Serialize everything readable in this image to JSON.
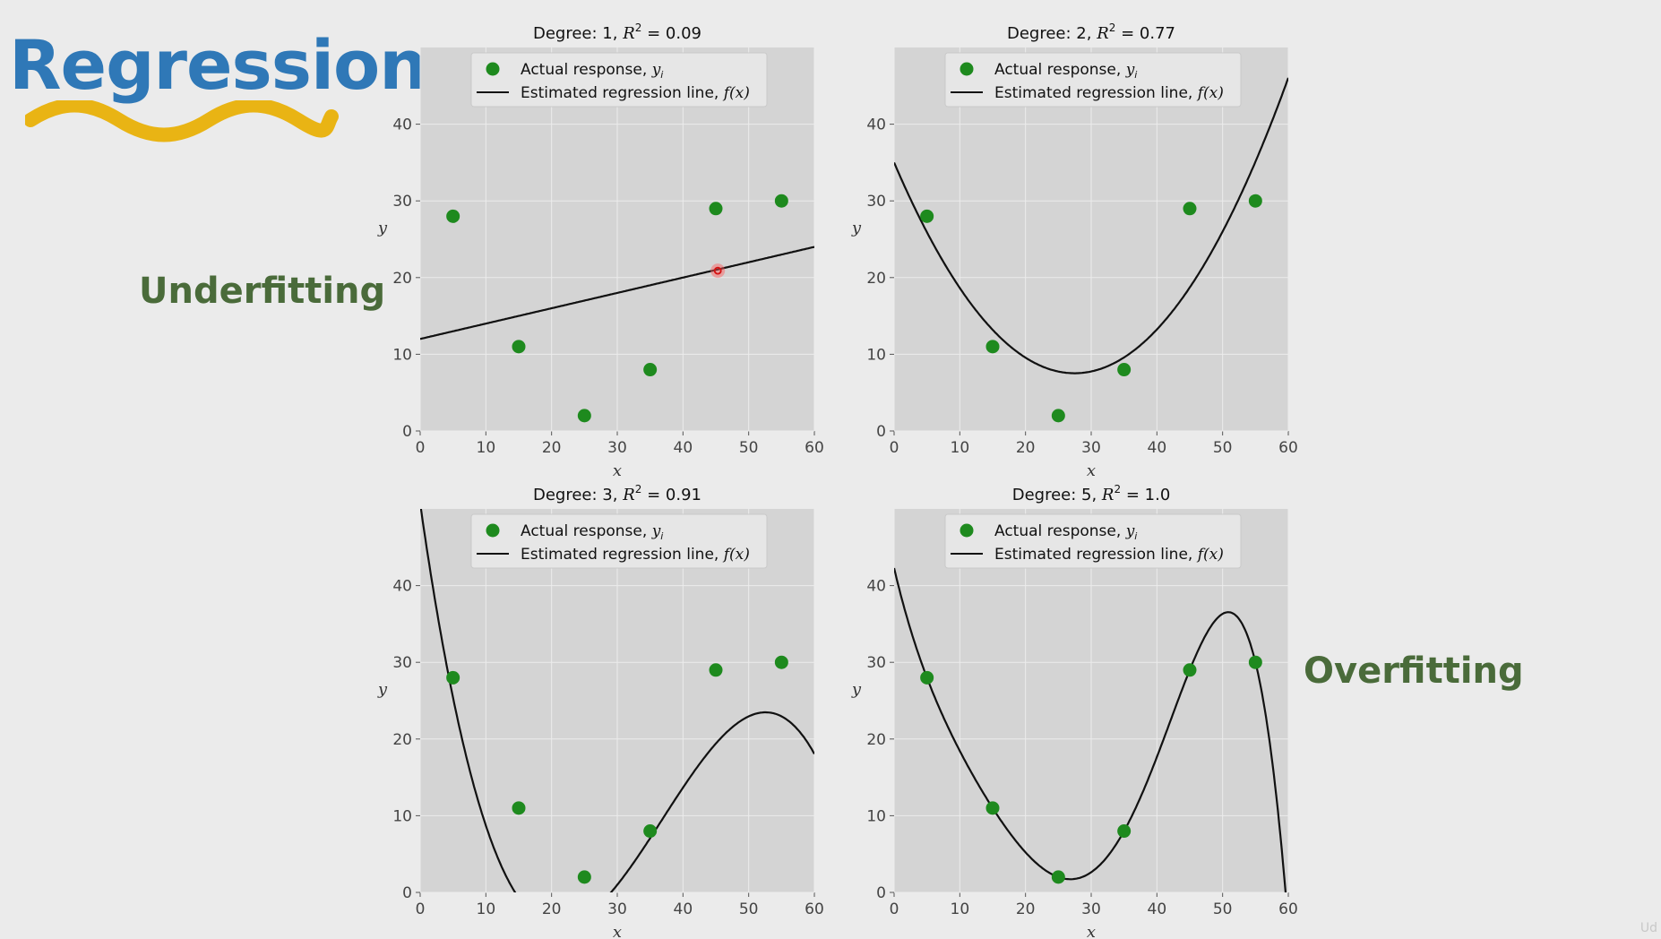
{
  "heading": "Regression",
  "labels": {
    "under": "Underfitting",
    "over": "Overfitting"
  },
  "colors": {
    "heading": "#2f78b7",
    "squiggle": "#e9b414",
    "label": "#4a6b3a",
    "point": "#1e8a1e",
    "line": "#111111",
    "axes_bg": "#d4d4d4",
    "grid": "#ececec"
  },
  "legend": {
    "points": "Actual response, ",
    "points_sym": "y",
    "points_sub": "i",
    "line": "Estimated regression line, ",
    "line_sym": "f(x)"
  },
  "chart_data": [
    {
      "type": "scatter",
      "title_prefix": "Degree: 1, ",
      "r2": "0.09",
      "xlabel": "x",
      "ylabel": "y",
      "xlim": [
        0,
        60
      ],
      "ylim": [
        0,
        50
      ],
      "xticks": [
        0,
        10,
        20,
        30,
        40,
        50,
        60
      ],
      "yticks": [
        0,
        10,
        20,
        30,
        40
      ],
      "grid": true,
      "legend_loc": "top-right",
      "points": {
        "x": [
          5,
          15,
          25,
          35,
          45,
          55
        ],
        "y": [
          28,
          11,
          2,
          8,
          29,
          30
        ]
      },
      "fit": {
        "degree": 1,
        "coeffs": [
          12.0,
          0.2
        ]
      },
      "marker": {
        "x": 45.3,
        "y": 20.9
      }
    },
    {
      "type": "scatter",
      "title_prefix": "Degree: 2, ",
      "r2": "0.77",
      "xlabel": "x",
      "ylabel": "y",
      "xlim": [
        0,
        60
      ],
      "ylim": [
        0,
        50
      ],
      "xticks": [
        0,
        10,
        20,
        30,
        40,
        50,
        60
      ],
      "yticks": [
        0,
        10,
        20,
        30,
        40
      ],
      "grid": true,
      "legend_loc": "top-right",
      "points": {
        "x": [
          5,
          15,
          25,
          35,
          45,
          55
        ],
        "y": [
          28,
          11,
          2,
          8,
          29,
          30
        ]
      },
      "fit": {
        "degree": 2,
        "coeffs": [
          35.0,
          -2.0,
          0.0364
        ]
      }
    },
    {
      "type": "scatter",
      "title_prefix": "Degree: 3, ",
      "r2": "0.91",
      "xlabel": "x",
      "ylabel": "y",
      "xlim": [
        0,
        60
      ],
      "ylim": [
        0,
        50
      ],
      "xticks": [
        0,
        10,
        20,
        30,
        40,
        50,
        60
      ],
      "yticks": [
        0,
        10,
        20,
        30,
        40
      ],
      "grid": true,
      "legend_loc": "top-right",
      "points": {
        "x": [
          5,
          15,
          25,
          35,
          45,
          55
        ],
        "y": [
          28,
          11,
          2,
          8,
          29,
          30
        ]
      },
      "fit": {
        "degree": 3,
        "coeffs": [
          50.7,
          -6.01,
          0.1991,
          -0.0018
        ]
      }
    },
    {
      "type": "scatter",
      "title_prefix": "Degree: 5, ",
      "r2": "1.0",
      "xlabel": "x",
      "ylabel": "y",
      "xlim": [
        0,
        60
      ],
      "ylim": [
        0,
        50
      ],
      "xticks": [
        0,
        10,
        20,
        30,
        40,
        50,
        60
      ],
      "yticks": [
        0,
        10,
        20,
        30,
        40
      ],
      "grid": true,
      "legend_loc": "top-right",
      "points": {
        "x": [
          5,
          15,
          25,
          35,
          45,
          55
        ],
        "y": [
          28,
          11,
          2,
          8,
          29,
          30
        ]
      },
      "fit": {
        "degree": 5,
        "interpolate": true
      }
    }
  ],
  "corner_mark": "Ud"
}
